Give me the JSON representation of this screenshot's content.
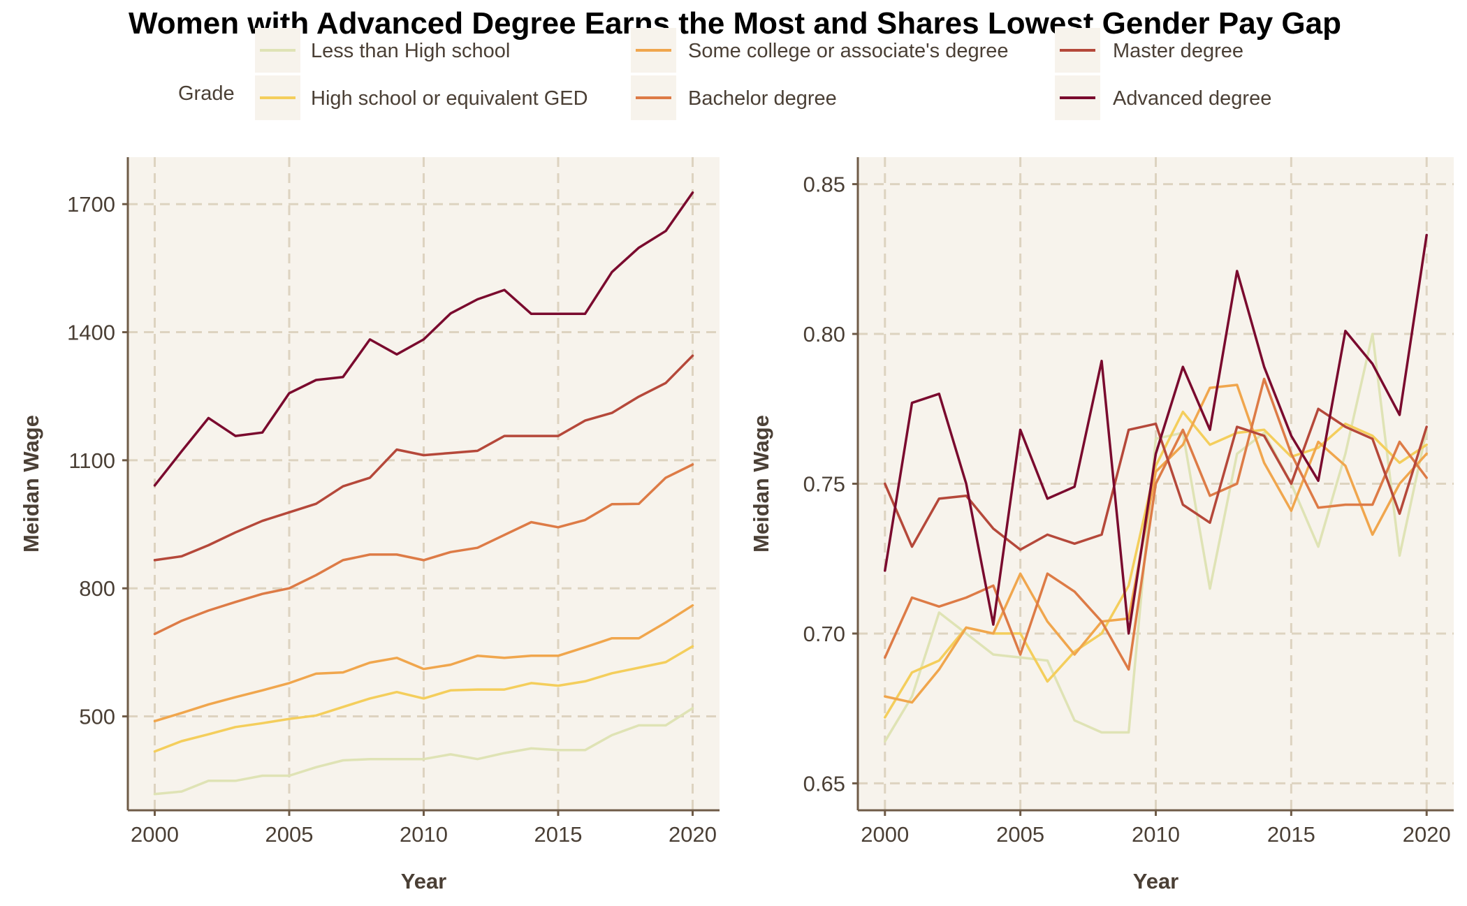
{
  "title": "Women with Advanced Degree Earns the Most and Shares Lowest Gender Pay Gap",
  "legend": {
    "title": "Grade",
    "items": [
      {
        "label": "Less than High school",
        "color": "#dfe3b5"
      },
      {
        "label": "High school or equivalent GED",
        "color": "#f4ce5c"
      },
      {
        "label": "Some college or associate's degree",
        "color": "#f0a64d"
      },
      {
        "label": "Bachelor degree",
        "color": "#dd7b46"
      },
      {
        "label": "Master degree",
        "color": "#b5483a"
      },
      {
        "label": "Advanced degree",
        "color": "#7a0a2e"
      }
    ]
  },
  "colors": {
    "panel_background": "#f7f3ec",
    "grid": "#ddd3c0",
    "axis": "#6f5b47",
    "text": "#4a3f35"
  },
  "chart_data": [
    {
      "type": "line",
      "xlabel": "Year",
      "ylabel": "Meidan Wage",
      "xlim": [
        1999.0,
        2021.0
      ],
      "ylim": [
        280,
        1810
      ],
      "xticks": [
        2000,
        2005,
        2010,
        2015,
        2020
      ],
      "yticks": [
        500,
        800,
        1100,
        1400,
        1700
      ],
      "ytick_labels": [
        "500",
        "800",
        "1100",
        "1400",
        "1700"
      ],
      "grid": true,
      "x": [
        2000,
        2001,
        2002,
        2003,
        2004,
        2005,
        2006,
        2007,
        2008,
        2009,
        2010,
        2011,
        2012,
        2013,
        2014,
        2015,
        2016,
        2017,
        2018,
        2019,
        2020
      ],
      "series": [
        {
          "name": "Less than High school",
          "values": [
            318,
            324,
            349,
            349,
            361,
            361,
            381,
            397,
            400,
            400,
            400,
            411,
            400,
            414,
            425,
            421,
            421,
            456,
            479,
            479,
            519
          ]
        },
        {
          "name": "High school or equivalent GED",
          "values": [
            418,
            442,
            458,
            475,
            484,
            494,
            502,
            522,
            542,
            557,
            542,
            561,
            563,
            563,
            578,
            572,
            582,
            601,
            614,
            627,
            664
          ]
        },
        {
          "name": "Some college or associate's degree",
          "values": [
            489,
            508,
            528,
            545,
            561,
            578,
            600,
            603,
            626,
            637,
            611,
            621,
            642,
            637,
            642,
            642,
            662,
            683,
            683,
            720,
            760
          ]
        },
        {
          "name": "Bachelor degree",
          "values": [
            693,
            724,
            748,
            768,
            787,
            800,
            831,
            866,
            879,
            879,
            866,
            885,
            895,
            925,
            955,
            943,
            960,
            997,
            998,
            1059,
            1090
          ]
        },
        {
          "name": "Master degree",
          "values": [
            866,
            875,
            901,
            931,
            958,
            978,
            998,
            1039,
            1059,
            1125,
            1112,
            1117,
            1122,
            1157,
            1157,
            1157,
            1193,
            1211,
            1249,
            1281,
            1345
          ]
        },
        {
          "name": "Advanced degree",
          "values": [
            1041,
            1121,
            1199,
            1157,
            1165,
            1257,
            1288,
            1295,
            1383,
            1348,
            1383,
            1444,
            1477,
            1499,
            1443,
            1443,
            1443,
            1541,
            1598,
            1637,
            1727
          ]
        }
      ]
    },
    {
      "type": "line",
      "xlabel": "Year",
      "ylabel": "Meidan Wage",
      "xlim": [
        1999.0,
        2021.0
      ],
      "ylim": [
        0.641,
        0.859
      ],
      "xticks": [
        2000,
        2005,
        2010,
        2015,
        2020
      ],
      "yticks": [
        0.65,
        0.7,
        0.75,
        0.8,
        0.85
      ],
      "ytick_labels": [
        "0.65",
        "0.70",
        "0.75",
        "0.80",
        "0.85"
      ],
      "grid": true,
      "x": [
        2000,
        2001,
        2002,
        2003,
        2004,
        2005,
        2006,
        2007,
        2008,
        2009,
        2010,
        2011,
        2012,
        2013,
        2014,
        2015,
        2016,
        2017,
        2018,
        2019,
        2020
      ],
      "series": [
        {
          "name": "Less than High school",
          "values": [
            0.664,
            0.679,
            0.707,
            0.7,
            0.693,
            0.692,
            0.691,
            0.671,
            0.667,
            0.667,
            0.765,
            0.767,
            0.715,
            0.76,
            0.767,
            0.75,
            0.729,
            0.76,
            0.8,
            0.726,
            0.768
          ]
        },
        {
          "name": "High school or equivalent GED",
          "values": [
            0.672,
            0.687,
            0.691,
            0.702,
            0.7,
            0.7,
            0.684,
            0.694,
            0.7,
            0.716,
            0.756,
            0.774,
            0.763,
            0.767,
            0.768,
            0.759,
            0.762,
            0.77,
            0.766,
            0.757,
            0.763
          ]
        },
        {
          "name": "Some college or associate's degree",
          "values": [
            0.679,
            0.677,
            0.688,
            0.702,
            0.7,
            0.72,
            0.704,
            0.693,
            0.704,
            0.705,
            0.754,
            0.763,
            0.782,
            0.783,
            0.757,
            0.741,
            0.764,
            0.756,
            0.733,
            0.75,
            0.76
          ]
        },
        {
          "name": "Bachelor degree",
          "values": [
            0.692,
            0.712,
            0.709,
            0.712,
            0.716,
            0.693,
            0.72,
            0.714,
            0.704,
            0.688,
            0.75,
            0.768,
            0.746,
            0.75,
            0.785,
            0.76,
            0.742,
            0.743,
            0.743,
            0.764,
            0.752
          ]
        },
        {
          "name": "Master degree",
          "values": [
            0.75,
            0.729,
            0.745,
            0.746,
            0.735,
            0.728,
            0.733,
            0.73,
            0.733,
            0.768,
            0.77,
            0.743,
            0.737,
            0.769,
            0.766,
            0.75,
            0.775,
            0.769,
            0.765,
            0.74,
            0.769
          ]
        },
        {
          "name": "Advanced degree",
          "values": [
            0.721,
            0.777,
            0.78,
            0.75,
            0.703,
            0.768,
            0.745,
            0.749,
            0.791,
            0.7,
            0.76,
            0.789,
            0.768,
            0.821,
            0.789,
            0.766,
            0.751,
            0.801,
            0.79,
            0.773,
            0.833
          ]
        }
      ]
    }
  ]
}
